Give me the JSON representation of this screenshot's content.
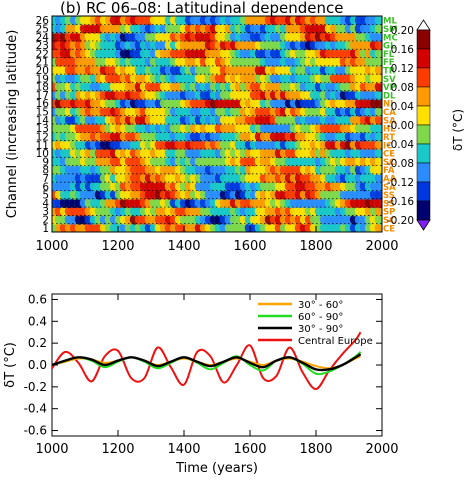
{
  "colors": {
    "ml_labels": "#3bbf2a",
    "ce_labels": "#f28c00",
    "axis": "#000000",
    "gridline": "#000000"
  },
  "chart_data": [
    {
      "type": "heatmap",
      "title": "(b) RC 06–08: Latitudinal dependence",
      "ylabel": "Channel (increasing latitude)",
      "xlabel": "",
      "xlim": [
        1000,
        2000
      ],
      "ylim": [
        1,
        26
      ],
      "x_ticks": [
        "1000",
        "1200",
        "1400",
        "1600",
        "1800",
        "2000"
      ],
      "y_ticks": [
        "1",
        "2",
        "3",
        "4",
        "5",
        "6",
        "7",
        "8",
        "9",
        "10",
        "11",
        "12",
        "13",
        "14",
        "15",
        "16",
        "17",
        "18",
        "19",
        "20",
        "21",
        "22",
        "23",
        "24",
        "25",
        "26"
      ],
      "channel_labels": [
        "CE",
        "SC",
        "SP",
        "SS",
        "SS",
        "SA",
        "AA",
        "FA",
        "SC",
        "CE",
        "IC",
        "RT",
        "HL",
        "SA",
        "CA",
        "NI",
        "DL",
        "VP",
        "SV",
        "TR",
        "FF",
        "FL",
        "GL",
        "MC",
        "SM",
        "ML"
      ],
      "colorbar": {
        "label": "δT (°C)",
        "range": [
          -0.2,
          0.2
        ],
        "ticks": [
          "0.20",
          "0.16",
          "0.12",
          "0.08",
          "0.04",
          "-0.00",
          "-0.04",
          "-0.08",
          "-0.12",
          "-0.16",
          "-0.20"
        ],
        "colors": [
          "#ffffff",
          "#8b0000",
          "#d40000",
          "#ff3c00",
          "#ff9a00",
          "#ffe000",
          "#7fd84a",
          "#19c8c8",
          "#2a8cff",
          "#0037e0",
          "#00006e",
          "#8020ff"
        ]
      },
      "grid": "dotted horizontal per channel"
    },
    {
      "type": "line",
      "title": "",
      "xlabel": "Time (years)",
      "ylabel": "δT (°C)",
      "xlim": [
        1000,
        2000
      ],
      "ylim": [
        -0.65,
        0.65
      ],
      "x_ticks": [
        "1000",
        "1200",
        "1400",
        "1600",
        "1800",
        "2000"
      ],
      "y_ticks": [
        "0.6",
        "0.4",
        "0.2",
        "0.0",
        "-0.2",
        "-0.4",
        "-0.6"
      ],
      "legend_position": "top-right",
      "x": [
        1000,
        1040,
        1080,
        1120,
        1160,
        1200,
        1240,
        1280,
        1320,
        1360,
        1400,
        1440,
        1480,
        1520,
        1560,
        1600,
        1640,
        1680,
        1720,
        1760,
        1800,
        1840,
        1880,
        1920,
        1935
      ],
      "series": [
        {
          "name": "30° - 60°",
          "color": "#ffa500",
          "values": [
            0.0,
            0.03,
            0.06,
            0.05,
            0.02,
            0.04,
            0.07,
            0.04,
            0.0,
            0.03,
            0.06,
            0.03,
            0.0,
            0.03,
            0.06,
            0.03,
            0.0,
            0.04,
            0.06,
            0.03,
            -0.01,
            -0.03,
            0.0,
            0.06,
            0.08
          ]
        },
        {
          "name": "60° - 90°",
          "color": "#22dd22",
          "values": [
            0.0,
            0.04,
            0.07,
            0.04,
            -0.02,
            0.03,
            0.07,
            0.03,
            -0.03,
            0.02,
            0.07,
            0.02,
            -0.04,
            0.02,
            0.08,
            0.0,
            -0.05,
            0.04,
            0.07,
            0.01,
            -0.08,
            -0.06,
            0.0,
            0.08,
            0.12
          ]
        },
        {
          "name": "30° - 90°",
          "color": "#000000",
          "values": [
            0.0,
            0.04,
            0.07,
            0.05,
            0.0,
            0.04,
            0.07,
            0.04,
            -0.01,
            0.03,
            0.07,
            0.03,
            -0.01,
            0.03,
            0.07,
            0.02,
            -0.02,
            0.04,
            0.07,
            0.02,
            -0.04,
            -0.04,
            0.0,
            0.07,
            0.1
          ]
        },
        {
          "name": "Central Europe",
          "color": "#ee1111",
          "values": [
            -0.03,
            0.12,
            0.02,
            -0.15,
            0.08,
            0.13,
            -0.12,
            -0.12,
            0.16,
            -0.02,
            -0.18,
            0.12,
            0.08,
            -0.16,
            0.0,
            0.18,
            -0.12,
            -0.1,
            0.16,
            -0.07,
            -0.22,
            -0.05,
            0.1,
            0.23,
            0.3
          ]
        }
      ]
    }
  ]
}
